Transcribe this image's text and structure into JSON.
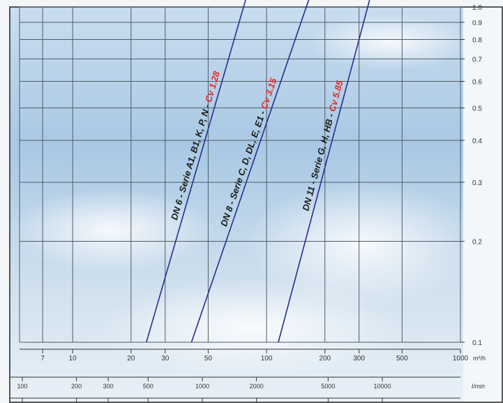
{
  "header_fragment": "...",
  "chart_data": {
    "type": "line",
    "title": "",
    "background": "sky",
    "grid": true,
    "y_axis": {
      "position": "right",
      "scale": "log",
      "ylim": [
        0.1,
        1.0
      ],
      "ticks": [
        "1.0",
        "0.9",
        "0.8",
        "0.7",
        "0.6",
        "0.5",
        "0.4",
        "0.3",
        "0.2",
        "0.1"
      ],
      "tick_values": [
        1.0,
        0.9,
        0.8,
        0.7,
        0.6,
        0.5,
        0.4,
        0.3,
        0.2,
        0.1
      ]
    },
    "x_axis_primary": {
      "scale": "log",
      "unit": "m³/h",
      "xlim": [
        5.5,
        1000
      ],
      "ticks": [
        "7",
        "10",
        "20",
        "30",
        "50",
        "100",
        "200",
        "300",
        "500",
        "1000"
      ],
      "tick_values": [
        7,
        10,
        20,
        30,
        50,
        100,
        200,
        300,
        500,
        1000
      ]
    },
    "x_axis_secondary": {
      "scale": "log",
      "unit": "l/min",
      "ticks": [
        "100",
        "200",
        "300",
        "500",
        "1000",
        "2000",
        "5000",
        "10000"
      ],
      "tick_values": [
        100,
        200,
        300,
        500,
        1000,
        2000,
        5000,
        10000
      ]
    },
    "series": [
      {
        "name_black": "DN 6 - Serie A1, B1, K, P, N - ",
        "name_red": "Cv 1.28",
        "x": [
          24,
          78
        ],
        "y": [
          0.1,
          1.05
        ]
      },
      {
        "name_black": "DN 8 - Serie C, D, DL, E, E1 - ",
        "name_red": "Cv 3.15",
        "x": [
          41,
          165
        ],
        "y": [
          0.1,
          1.05
        ]
      },
      {
        "name_black": "DN 11 - Serie G, H, HB - ",
        "name_red": "Cv 5.85",
        "x": [
          115,
          340
        ],
        "y": [
          0.1,
          1.05
        ]
      }
    ],
    "colors": {
      "line": "#23308f",
      "grid": "#4f5b66",
      "red": "#e8282c",
      "label": "#1a1a1a"
    }
  }
}
